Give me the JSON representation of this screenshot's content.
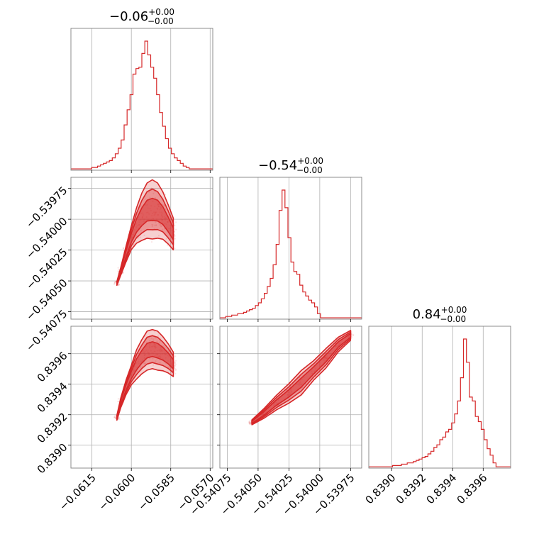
{
  "chart_data": {
    "type": "corner",
    "color": "#d62728",
    "grid": true,
    "parameters": [
      {
        "title_main": "−0.06",
        "title_sup": "+0.00",
        "title_sub": "−0.00",
        "range": [
          -0.0623,
          -0.0569
        ],
        "ticks": [
          -0.0615,
          -0.06,
          -0.0585,
          -0.057
        ],
        "tick_labels": [
          "−0.0615",
          "−0.0600",
          "−0.0585",
          "−0.0570"
        ],
        "hist": {
          "edges_start": -0.0623,
          "edges_step": 0.0001125,
          "counts": [
            1,
            1,
            1,
            1,
            1,
            1,
            1,
            2,
            2,
            3,
            4,
            5,
            6,
            7,
            9,
            12,
            16,
            22,
            33,
            44,
            55,
            70,
            74,
            75,
            85,
            94,
            84,
            75,
            67,
            55,
            42,
            32,
            23,
            16,
            12,
            9,
            7,
            5,
            3,
            2,
            1,
            1,
            1,
            1,
            1,
            1,
            1,
            1
          ]
        }
      },
      {
        "title_main": "−0.54",
        "title_sup": "+0.00",
        "title_sub": "−0.00",
        "range": [
          -0.54081,
          -0.53966
        ],
        "ticks": [
          -0.54075,
          -0.5405,
          -0.54025,
          -0.54,
          -0.53975
        ],
        "tick_labels": [
          "−0.54075",
          "−0.54050",
          "−0.54025",
          "−0.54000",
          "−0.53975"
        ],
        "hist": {
          "edges_start": -0.54081,
          "edges_step": 2.4e-05,
          "counts": [
            1,
            1,
            2,
            2,
            3,
            3,
            4,
            4,
            5,
            6,
            7,
            8,
            10,
            12,
            15,
            19,
            24,
            30,
            40,
            55,
            80,
            95,
            82,
            60,
            42,
            35,
            33,
            25,
            20,
            17,
            14,
            12,
            9,
            4,
            1,
            1,
            1,
            1,
            1,
            1,
            1,
            1,
            1,
            1,
            1,
            1,
            1,
            1
          ]
        }
      },
      {
        "title_main": "0.84",
        "title_sup": "+0.00",
        "title_sub": "−0.00",
        "range": [
          0.83885,
          0.83978
        ],
        "ticks": [
          0.839,
          0.8392,
          0.8394,
          0.8396
        ],
        "tick_labels": [
          "0.8390",
          "0.8392",
          "0.8394",
          "0.8396"
        ],
        "hist": {
          "edges_start": 0.83885,
          "edges_step": 1.94e-05,
          "counts": [
            1,
            1,
            1,
            1,
            1,
            1,
            1,
            1,
            2,
            2,
            2,
            3,
            3,
            4,
            4,
            5,
            6,
            7,
            8,
            9,
            11,
            13,
            16,
            18,
            22,
            24,
            28,
            30,
            35,
            42,
            52,
            70,
            100,
            82,
            55,
            52,
            40,
            36,
            30,
            22,
            15,
            10,
            4,
            1,
            1,
            1,
            1,
            1
          ]
        }
      }
    ],
    "pairs": [
      {
        "row": 1,
        "col": 0,
        "ridge": [
          [
            -0.06055,
            -0.54052
          ],
          [
            -0.0604,
            -0.54042
          ],
          [
            -0.0602,
            -0.54028
          ],
          [
            -0.06,
            -0.54015
          ],
          [
            -0.0598,
            -0.54005
          ],
          [
            -0.0596,
            -0.53998
          ],
          [
            -0.0594,
            -0.53993
          ],
          [
            -0.0592,
            -0.53992
          ],
          [
            -0.059,
            -0.53993
          ],
          [
            -0.0588,
            -0.53997
          ],
          [
            -0.0586,
            -0.54004
          ],
          [
            -0.0584,
            -0.54012
          ]
        ],
        "width": [
          1e-05,
          2e-05,
          4e-05,
          6e-05,
          9e-05,
          0.00012,
          0.00014,
          0.00015,
          0.00014,
          0.00012,
          0.0001,
          8e-05
        ]
      },
      {
        "row": 2,
        "col": 0,
        "ridge": [
          [
            -0.06055,
            0.83918
          ],
          [
            -0.0604,
            0.83928
          ],
          [
            -0.0602,
            0.83938
          ],
          [
            -0.06,
            0.83946
          ],
          [
            -0.0598,
            0.83953
          ],
          [
            -0.0596,
            0.83958
          ],
          [
            -0.0594,
            0.83962
          ],
          [
            -0.0592,
            0.83963
          ],
          [
            -0.059,
            0.83962
          ],
          [
            -0.0588,
            0.8396
          ],
          [
            -0.0586,
            0.83957
          ],
          [
            -0.0584,
            0.83953
          ]
        ],
        "width": [
          1e-05,
          2e-05,
          3e-05,
          4e-05,
          6e-05,
          7e-05,
          8e-05,
          8e-05,
          8e-05,
          7e-05,
          6e-05,
          5e-05
        ]
      },
      {
        "row": 2,
        "col": 1,
        "ridge": [
          [
            -0.54055,
            0.83915
          ],
          [
            -0.54045,
            0.83921
          ],
          [
            -0.54035,
            0.83928
          ],
          [
            -0.54025,
            0.83934
          ],
          [
            -0.54015,
            0.83941
          ],
          [
            -0.54005,
            0.83949
          ],
          [
            -0.53995,
            0.83957
          ],
          [
            -0.53985,
            0.83966
          ],
          [
            -0.53975,
            0.83972
          ]
        ],
        "width": [
          1e-05,
          2e-05,
          3e-05,
          4e-05,
          5e-05,
          4e-05,
          4e-05,
          3e-05,
          2e-05
        ]
      }
    ]
  }
}
